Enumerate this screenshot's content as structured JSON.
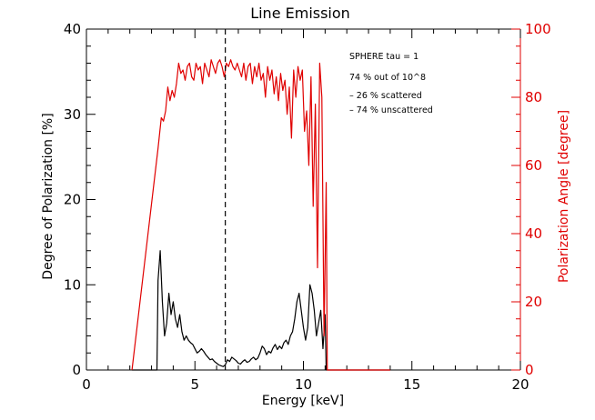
{
  "chart_data": {
    "type": "line",
    "title": "Line Emission",
    "xlabel": "Energy [keV]",
    "ylabel_left": "Degree of Polarization [%]",
    "ylabel_right": "Polarization Angle [degree]",
    "xlim": [
      0,
      20
    ],
    "ylim_left": [
      0,
      40
    ],
    "ylim_right": [
      0,
      100
    ],
    "x_ticks": [
      "0",
      "5",
      "10",
      "15",
      "20"
    ],
    "y_left_ticks": [
      "0",
      "10",
      "20",
      "30",
      "40"
    ],
    "y_right_ticks": [
      "0",
      "20",
      "40",
      "60",
      "80",
      "100"
    ],
    "vline_x": 6.4,
    "colors": {
      "degree": "#000000",
      "angle": "#e00000",
      "axis_right": "#e00000"
    },
    "annotations": [
      "SPHERE tau = 1",
      "74 % out of 10^8",
      "– 26 % scattered",
      "– 74 % unscattered"
    ],
    "series": [
      {
        "name": "Degree of Polarization",
        "axis": "left",
        "x": [
          3.3,
          3.4,
          3.5,
          3.6,
          3.7,
          3.8,
          3.9,
          4.0,
          4.1,
          4.2,
          4.3,
          4.4,
          4.5,
          4.6,
          4.7,
          4.8,
          4.9,
          5.0,
          5.1,
          5.2,
          5.3,
          5.4,
          5.5,
          5.6,
          5.7,
          5.8,
          5.9,
          6.0,
          6.1,
          6.2,
          6.3,
          6.4,
          6.5,
          6.6,
          6.7,
          6.8,
          6.9,
          7.0,
          7.1,
          7.2,
          7.3,
          7.4,
          7.5,
          7.6,
          7.7,
          7.8,
          7.9,
          8.0,
          8.1,
          8.2,
          8.3,
          8.4,
          8.5,
          8.6,
          8.7,
          8.8,
          8.9,
          9.0,
          9.1,
          9.2,
          9.3,
          9.4,
          9.5,
          9.6,
          9.7,
          9.8,
          9.9,
          10.0,
          10.1,
          10.2,
          10.3,
          10.4,
          10.5,
          10.6,
          10.7,
          10.8,
          10.9,
          11.0
        ],
        "values": [
          10.5,
          14.0,
          8.0,
          4.0,
          5.5,
          9.0,
          6.5,
          8.0,
          6.0,
          5.0,
          6.5,
          4.5,
          3.5,
          4.0,
          3.5,
          3.2,
          3.0,
          2.5,
          2.0,
          2.2,
          2.5,
          2.2,
          1.8,
          1.5,
          1.2,
          1.3,
          1.0,
          0.8,
          0.6,
          0.5,
          0.4,
          0.6,
          1.2,
          1.0,
          1.5,
          1.3,
          1.1,
          0.8,
          0.7,
          1.0,
          1.2,
          0.9,
          1.0,
          1.3,
          1.5,
          1.2,
          1.4,
          2.0,
          2.8,
          2.5,
          1.8,
          2.2,
          2.0,
          2.6,
          3.0,
          2.4,
          2.8,
          2.5,
          3.2,
          3.5,
          3.0,
          4.0,
          4.5,
          6.0,
          8.0,
          9.0,
          7.0,
          5.0,
          3.5,
          5.0,
          10.0,
          9.0,
          7.0,
          4.0,
          5.5,
          7.0,
          2.5,
          6.5
        ]
      },
      {
        "name": "Polarization Angle",
        "axis": "right",
        "x": [
          2.1,
          3.3,
          3.35,
          3.45,
          3.55,
          3.65,
          3.75,
          3.85,
          3.95,
          4.05,
          4.15,
          4.25,
          4.35,
          4.45,
          4.55,
          4.65,
          4.75,
          4.85,
          4.95,
          5.05,
          5.15,
          5.25,
          5.35,
          5.45,
          5.55,
          5.65,
          5.75,
          5.85,
          5.95,
          6.05,
          6.15,
          6.25,
          6.35,
          6.45,
          6.55,
          6.65,
          6.75,
          6.85,
          6.95,
          7.05,
          7.15,
          7.25,
          7.35,
          7.45,
          7.55,
          7.65,
          7.75,
          7.85,
          7.95,
          8.05,
          8.15,
          8.25,
          8.35,
          8.45,
          8.55,
          8.65,
          8.75,
          8.85,
          8.95,
          9.05,
          9.15,
          9.25,
          9.35,
          9.45,
          9.55,
          9.65,
          9.75,
          9.85,
          9.95,
          10.05,
          10.15,
          10.25,
          10.35,
          10.45,
          10.55,
          10.65,
          10.75,
          10.85,
          10.95,
          11.05,
          11.1,
          11.2,
          14.0
        ],
        "values": [
          0,
          65,
          68,
          74,
          73,
          76,
          83,
          79,
          82,
          80,
          84,
          90,
          87,
          88,
          85,
          89,
          90,
          86,
          85,
          90,
          88,
          89,
          84,
          90,
          88,
          86,
          91,
          89,
          87,
          90,
          91,
          89,
          86,
          90,
          89,
          91,
          89,
          88,
          90,
          88,
          86,
          90,
          85,
          89,
          90,
          84,
          89,
          86,
          90,
          85,
          87,
          80,
          89,
          85,
          88,
          81,
          86,
          79,
          87,
          82,
          85,
          75,
          83,
          68,
          88,
          80,
          89,
          85,
          88,
          70,
          76,
          60,
          86,
          48,
          78,
          30,
          90,
          80,
          10,
          55,
          0,
          0,
          0
        ]
      }
    ]
  }
}
